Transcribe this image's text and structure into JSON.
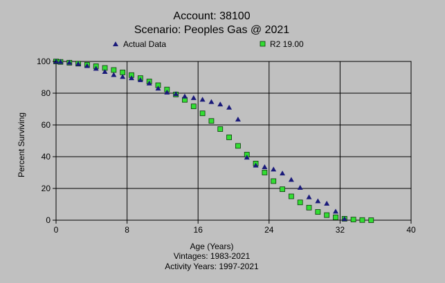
{
  "chart_data": {
    "type": "scatter",
    "title_lines": [
      "Account: 38100",
      "Scenario: Peoples Gas @ 2021"
    ],
    "xlabel": "Age (Years)",
    "ylabel": "Percent Surviving",
    "notes": [
      "Vintages: 1983-2021",
      "Activity Years: 1997-2021"
    ],
    "xlim": [
      0,
      40
    ],
    "ylim": [
      0,
      100
    ],
    "x_ticks": [
      0,
      8,
      16,
      24,
      32,
      40
    ],
    "y_ticks": [
      0,
      20,
      40,
      60,
      80,
      100
    ],
    "grid": true,
    "legend_placement": "top",
    "series": [
      {
        "name": "Actual Data",
        "marker": "triangle",
        "color": "#1a1a7a",
        "x": [
          0,
          0.5,
          1.5,
          2.5,
          3.5,
          4.5,
          5.5,
          6.5,
          7.5,
          8.5,
          9.5,
          10.5,
          11.5,
          12.5,
          13.5,
          14.5,
          15.5,
          16.5,
          17.5,
          18.5,
          19.5,
          20.5,
          21.5,
          22.5,
          23.5,
          24.5,
          25.5,
          26.5,
          27.5,
          28.5,
          29.5,
          30.5,
          31.5,
          32.5
        ],
        "y": [
          100,
          99.8,
          99.3,
          98.5,
          97.2,
          95.5,
          93.5,
          91.5,
          90.3,
          89.5,
          88.3,
          86.2,
          83.0,
          80.5,
          79.5,
          78.0,
          77.0,
          76.0,
          74.5,
          73.0,
          71.0,
          63.5,
          39.5,
          34.5,
          33.5,
          32.0,
          29.5,
          25.5,
          20.5,
          14.5,
          12.0,
          10.5,
          5.5,
          0.8
        ]
      },
      {
        "name": "R2 19.00",
        "marker": "square",
        "color": "#33dd33",
        "x": [
          0,
          0.5,
          1.5,
          2.5,
          3.5,
          4.5,
          5.5,
          6.5,
          7.5,
          8.5,
          9.5,
          10.5,
          11.5,
          12.5,
          13.5,
          14.5,
          15.5,
          16.5,
          17.5,
          18.5,
          19.5,
          20.5,
          21.5,
          22.5,
          23.5,
          24.5,
          25.5,
          26.5,
          27.5,
          28.5,
          29.5,
          30.5,
          31.5,
          32.5,
          33.5,
          34.5,
          35.5
        ],
        "y": [
          100,
          99.7,
          99.2,
          98.6,
          97.9,
          97.0,
          95.9,
          94.6,
          93.1,
          91.4,
          89.5,
          87.4,
          85.0,
          82.3,
          79.2,
          75.8,
          71.7,
          67.3,
          62.5,
          57.4,
          52.2,
          46.8,
          41.3,
          35.7,
          30.0,
          24.6,
          19.5,
          15.0,
          11.2,
          7.9,
          5.2,
          3.2,
          1.8,
          0.9,
          0.4,
          0.1,
          0.0
        ]
      }
    ]
  }
}
